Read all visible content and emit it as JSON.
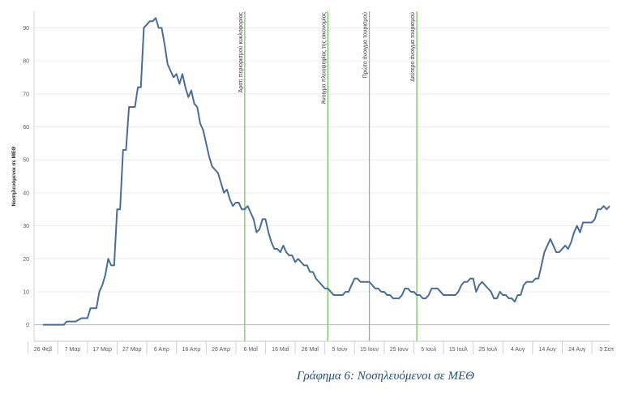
{
  "chart_data": {
    "type": "line",
    "title": "",
    "caption": "Γράφημα 6: Νοσηλευόμενοι σε ΜΕΘ",
    "ylabel": "Νοσηλευόμενοι σε ΜΕΘ",
    "xlabel": "",
    "ylim": [
      -5,
      95
    ],
    "yticks": [
      0,
      10,
      20,
      30,
      40,
      50,
      60,
      70,
      80,
      90
    ],
    "x_range": [
      "2020-02-23",
      "2020-09-04"
    ],
    "grid": true,
    "legend": "none",
    "line_color": "#4a6d96",
    "event_line_color": "#7cc26e",
    "xticks": [
      {
        "date": "2020-02-26",
        "label": "26 Φεβ"
      },
      {
        "date": "2020-03-07",
        "label": "7 Μαρ"
      },
      {
        "date": "2020-03-17",
        "label": "17 Μαρ"
      },
      {
        "date": "2020-03-27",
        "label": "27 Μαρ"
      },
      {
        "date": "2020-04-06",
        "label": "6 Απρ"
      },
      {
        "date": "2020-04-16",
        "label": "16 Απρ"
      },
      {
        "date": "2020-04-26",
        "label": "26 Απρ"
      },
      {
        "date": "2020-05-06",
        "label": "6 Μαΐ"
      },
      {
        "date": "2020-05-16",
        "label": "16 Μαΐ"
      },
      {
        "date": "2020-05-26",
        "label": "26 Μαΐ"
      },
      {
        "date": "2020-06-05",
        "label": "5 Ιουν"
      },
      {
        "date": "2020-06-15",
        "label": "15 Ιουν"
      },
      {
        "date": "2020-06-25",
        "label": "25 Ιουν"
      },
      {
        "date": "2020-07-05",
        "label": "5 Ιουλ"
      },
      {
        "date": "2020-07-15",
        "label": "15 Ιουλ"
      },
      {
        "date": "2020-07-25",
        "label": "25 Ιουλ"
      },
      {
        "date": "2020-08-04",
        "label": "4 Αυγ"
      },
      {
        "date": "2020-08-14",
        "label": "14 Αυγ"
      },
      {
        "date": "2020-08-24",
        "label": "24 Αυγ"
      },
      {
        "date": "2020-09-03",
        "label": "3 Σεπ"
      }
    ],
    "events": [
      {
        "date": "2020-05-04",
        "label": "Άρση περιορισμού κυκλοφορίας"
      },
      {
        "date": "2020-06-01",
        "label": "Άνοιγμα πλειοψηφίας της οικονομίας"
      },
      {
        "date": "2020-06-15",
        "label": "Πρώτο άνοιγμα τουρισμού"
      },
      {
        "date": "2020-07-01",
        "label": "Δεύτερο άνοιγμα τουρισμού"
      }
    ],
    "series": [
      {
        "points": [
          [
            "2020-02-26",
            0
          ],
          [
            "2020-03-04",
            0
          ],
          [
            "2020-03-05",
            1
          ],
          [
            "2020-03-08",
            1
          ],
          [
            "2020-03-10",
            2
          ],
          [
            "2020-03-12",
            2
          ],
          [
            "2020-03-13",
            5
          ],
          [
            "2020-03-15",
            5
          ],
          [
            "2020-03-16",
            10
          ],
          [
            "2020-03-17",
            12
          ],
          [
            "2020-03-18",
            15
          ],
          [
            "2020-03-19",
            20
          ],
          [
            "2020-03-20",
            18
          ],
          [
            "2020-03-21",
            18
          ],
          [
            "2020-03-22",
            35
          ],
          [
            "2020-03-23",
            35
          ],
          [
            "2020-03-24",
            53
          ],
          [
            "2020-03-25",
            53
          ],
          [
            "2020-03-26",
            66
          ],
          [
            "2020-03-28",
            66
          ],
          [
            "2020-03-29",
            72
          ],
          [
            "2020-03-30",
            72
          ],
          [
            "2020-03-31",
            90
          ],
          [
            "2020-04-01",
            91
          ],
          [
            "2020-04-02",
            92
          ],
          [
            "2020-04-03",
            92
          ],
          [
            "2020-04-04",
            93
          ],
          [
            "2020-04-05",
            90
          ],
          [
            "2020-04-06",
            90
          ],
          [
            "2020-04-07",
            85
          ],
          [
            "2020-04-08",
            79
          ],
          [
            "2020-04-09",
            77
          ],
          [
            "2020-04-10",
            75
          ],
          [
            "2020-04-11",
            76
          ],
          [
            "2020-04-12",
            73
          ],
          [
            "2020-04-13",
            76
          ],
          [
            "2020-04-14",
            72
          ],
          [
            "2020-04-15",
            69
          ],
          [
            "2020-04-16",
            71
          ],
          [
            "2020-04-17",
            67
          ],
          [
            "2020-04-18",
            66
          ],
          [
            "2020-04-19",
            61
          ],
          [
            "2020-04-20",
            59
          ],
          [
            "2020-04-21",
            55
          ],
          [
            "2020-04-22",
            51
          ],
          [
            "2020-04-23",
            48
          ],
          [
            "2020-04-24",
            47
          ],
          [
            "2020-04-25",
            46
          ],
          [
            "2020-04-26",
            43
          ],
          [
            "2020-04-27",
            40
          ],
          [
            "2020-04-28",
            41
          ],
          [
            "2020-04-29",
            38
          ],
          [
            "2020-04-30",
            36
          ],
          [
            "2020-05-01",
            37
          ],
          [
            "2020-05-02",
            37
          ],
          [
            "2020-05-03",
            35
          ],
          [
            "2020-05-04",
            35
          ],
          [
            "2020-05-05",
            36
          ],
          [
            "2020-05-06",
            34
          ],
          [
            "2020-05-07",
            32
          ],
          [
            "2020-05-08",
            28
          ],
          [
            "2020-05-09",
            29
          ],
          [
            "2020-05-10",
            32
          ],
          [
            "2020-05-11",
            32
          ],
          [
            "2020-05-12",
            28
          ],
          [
            "2020-05-13",
            25
          ],
          [
            "2020-05-14",
            23
          ],
          [
            "2020-05-15",
            23
          ],
          [
            "2020-05-16",
            22
          ],
          [
            "2020-05-17",
            24
          ],
          [
            "2020-05-18",
            22
          ],
          [
            "2020-05-19",
            21
          ],
          [
            "2020-05-20",
            21
          ],
          [
            "2020-05-21",
            19
          ],
          [
            "2020-05-22",
            20
          ],
          [
            "2020-05-23",
            19
          ],
          [
            "2020-05-24",
            18
          ],
          [
            "2020-05-25",
            18
          ],
          [
            "2020-05-26",
            16
          ],
          [
            "2020-05-27",
            16
          ],
          [
            "2020-05-28",
            14
          ],
          [
            "2020-05-29",
            13
          ],
          [
            "2020-05-30",
            12
          ],
          [
            "2020-05-31",
            11
          ],
          [
            "2020-06-01",
            11
          ],
          [
            "2020-06-02",
            10
          ],
          [
            "2020-06-03",
            9
          ],
          [
            "2020-06-04",
            9
          ],
          [
            "2020-06-05",
            9
          ],
          [
            "2020-06-06",
            9
          ],
          [
            "2020-06-07",
            10
          ],
          [
            "2020-06-08",
            10
          ],
          [
            "2020-06-09",
            12
          ],
          [
            "2020-06-10",
            14
          ],
          [
            "2020-06-11",
            14
          ],
          [
            "2020-06-12",
            13
          ],
          [
            "2020-06-13",
            13
          ],
          [
            "2020-06-14",
            13
          ],
          [
            "2020-06-15",
            13
          ],
          [
            "2020-06-16",
            12
          ],
          [
            "2020-06-17",
            11
          ],
          [
            "2020-06-18",
            11
          ],
          [
            "2020-06-19",
            10
          ],
          [
            "2020-06-20",
            10
          ],
          [
            "2020-06-21",
            9
          ],
          [
            "2020-06-22",
            9
          ],
          [
            "2020-06-23",
            8
          ],
          [
            "2020-06-24",
            8
          ],
          [
            "2020-06-25",
            8
          ],
          [
            "2020-06-26",
            9
          ],
          [
            "2020-06-27",
            11
          ],
          [
            "2020-06-28",
            11
          ],
          [
            "2020-06-29",
            10
          ],
          [
            "2020-06-30",
            10
          ],
          [
            "2020-07-01",
            9
          ],
          [
            "2020-07-02",
            9
          ],
          [
            "2020-07-03",
            8
          ],
          [
            "2020-07-04",
            8
          ],
          [
            "2020-07-05",
            9
          ],
          [
            "2020-07-06",
            11
          ],
          [
            "2020-07-07",
            11
          ],
          [
            "2020-07-08",
            11
          ],
          [
            "2020-07-09",
            10
          ],
          [
            "2020-07-10",
            9
          ],
          [
            "2020-07-11",
            9
          ],
          [
            "2020-07-12",
            9
          ],
          [
            "2020-07-13",
            9
          ],
          [
            "2020-07-14",
            9
          ],
          [
            "2020-07-15",
            10
          ],
          [
            "2020-07-16",
            12
          ],
          [
            "2020-07-17",
            13
          ],
          [
            "2020-07-18",
            13
          ],
          [
            "2020-07-19",
            14
          ],
          [
            "2020-07-20",
            14
          ],
          [
            "2020-07-21",
            10
          ],
          [
            "2020-07-22",
            12
          ],
          [
            "2020-07-23",
            13
          ],
          [
            "2020-07-24",
            12
          ],
          [
            "2020-07-25",
            11
          ],
          [
            "2020-07-26",
            10
          ],
          [
            "2020-07-27",
            8
          ],
          [
            "2020-07-28",
            8
          ],
          [
            "2020-07-29",
            10
          ],
          [
            "2020-07-30",
            9
          ],
          [
            "2020-07-31",
            9
          ],
          [
            "2020-08-01",
            8
          ],
          [
            "2020-08-02",
            8
          ],
          [
            "2020-08-03",
            7
          ],
          [
            "2020-08-04",
            9
          ],
          [
            "2020-08-05",
            9
          ],
          [
            "2020-08-06",
            12
          ],
          [
            "2020-08-07",
            13
          ],
          [
            "2020-08-08",
            13
          ],
          [
            "2020-08-09",
            13
          ],
          [
            "2020-08-10",
            14
          ],
          [
            "2020-08-11",
            14
          ],
          [
            "2020-08-12",
            18
          ],
          [
            "2020-08-13",
            22
          ],
          [
            "2020-08-14",
            24
          ],
          [
            "2020-08-15",
            26
          ],
          [
            "2020-08-16",
            24
          ],
          [
            "2020-08-17",
            22
          ],
          [
            "2020-08-18",
            22
          ],
          [
            "2020-08-19",
            23
          ],
          [
            "2020-08-20",
            24
          ],
          [
            "2020-08-21",
            23
          ],
          [
            "2020-08-22",
            25
          ],
          [
            "2020-08-23",
            28
          ],
          [
            "2020-08-24",
            30
          ],
          [
            "2020-08-25",
            28
          ],
          [
            "2020-08-26",
            31
          ],
          [
            "2020-08-27",
            31
          ],
          [
            "2020-08-28",
            31
          ],
          [
            "2020-08-29",
            31
          ],
          [
            "2020-08-30",
            32
          ],
          [
            "2020-08-31",
            35
          ],
          [
            "2020-09-01",
            35
          ],
          [
            "2020-09-02",
            36
          ],
          [
            "2020-09-03",
            35
          ],
          [
            "2020-09-04",
            36
          ]
        ]
      }
    ]
  }
}
